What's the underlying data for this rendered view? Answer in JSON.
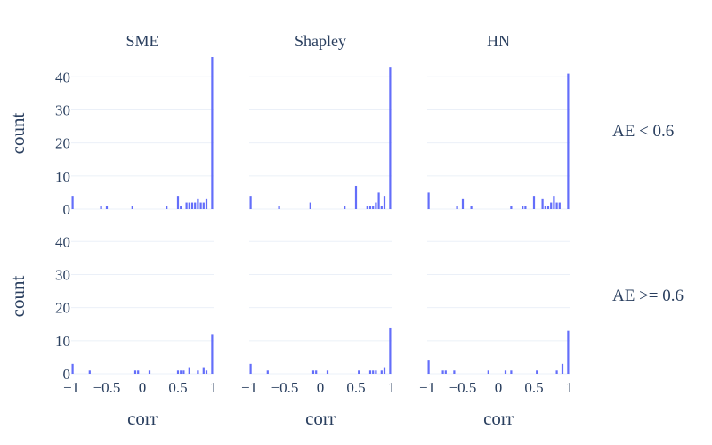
{
  "chart_data": {
    "type": "bar",
    "subtype": "histogram-facet-grid",
    "bar_color": "#636efa",
    "grid": true,
    "xlabel": "corr",
    "ylabel": "count",
    "xlim": [
      -1,
      1
    ],
    "ylim": [
      0,
      46
    ],
    "x_ticks": [
      "−1",
      "−0.5",
      "0",
      "0.5",
      "1"
    ],
    "y_ticks": [
      "0",
      "10",
      "20",
      "30",
      "40"
    ],
    "column_titles": [
      "SME",
      "Shapley",
      "HN"
    ],
    "row_titles": [
      "AE < 0.6",
      "AE >= 0.6"
    ],
    "bin_width": 0.04,
    "panels": [
      {
        "row": 0,
        "col": 0,
        "bins": [
          {
            "x": -0.98,
            "count": 4
          },
          {
            "x": -0.58,
            "count": 1
          },
          {
            "x": -0.5,
            "count": 1
          },
          {
            "x": -0.14,
            "count": 1
          },
          {
            "x": 0.34,
            "count": 1
          },
          {
            "x": 0.5,
            "count": 4
          },
          {
            "x": 0.54,
            "count": 1
          },
          {
            "x": 0.62,
            "count": 2
          },
          {
            "x": 0.66,
            "count": 2
          },
          {
            "x": 0.7,
            "count": 2
          },
          {
            "x": 0.74,
            "count": 2
          },
          {
            "x": 0.78,
            "count": 3
          },
          {
            "x": 0.82,
            "count": 2
          },
          {
            "x": 0.86,
            "count": 2
          },
          {
            "x": 0.9,
            "count": 3
          },
          {
            "x": 0.98,
            "count": 46
          }
        ]
      },
      {
        "row": 0,
        "col": 1,
        "bins": [
          {
            "x": -0.98,
            "count": 4
          },
          {
            "x": -0.58,
            "count": 1
          },
          {
            "x": -0.14,
            "count": 2
          },
          {
            "x": 0.34,
            "count": 1
          },
          {
            "x": 0.5,
            "count": 7
          },
          {
            "x": 0.66,
            "count": 1
          },
          {
            "x": 0.7,
            "count": 1
          },
          {
            "x": 0.74,
            "count": 1
          },
          {
            "x": 0.78,
            "count": 2
          },
          {
            "x": 0.82,
            "count": 5
          },
          {
            "x": 0.86,
            "count": 1
          },
          {
            "x": 0.9,
            "count": 4
          },
          {
            "x": 0.98,
            "count": 43
          }
        ]
      },
      {
        "row": 0,
        "col": 2,
        "bins": [
          {
            "x": -0.98,
            "count": 5
          },
          {
            "x": -0.58,
            "count": 1
          },
          {
            "x": -0.5,
            "count": 3
          },
          {
            "x": -0.38,
            "count": 1
          },
          {
            "x": 0.18,
            "count": 1
          },
          {
            "x": 0.34,
            "count": 1
          },
          {
            "x": 0.38,
            "count": 1
          },
          {
            "x": 0.5,
            "count": 4
          },
          {
            "x": 0.62,
            "count": 3
          },
          {
            "x": 0.66,
            "count": 1
          },
          {
            "x": 0.7,
            "count": 1
          },
          {
            "x": 0.74,
            "count": 2
          },
          {
            "x": 0.78,
            "count": 4
          },
          {
            "x": 0.82,
            "count": 2
          },
          {
            "x": 0.86,
            "count": 2
          },
          {
            "x": 0.98,
            "count": 41
          }
        ]
      },
      {
        "row": 1,
        "col": 0,
        "bins": [
          {
            "x": -0.98,
            "count": 3
          },
          {
            "x": -0.74,
            "count": 1
          },
          {
            "x": -0.1,
            "count": 1
          },
          {
            "x": -0.06,
            "count": 1
          },
          {
            "x": 0.1,
            "count": 1
          },
          {
            "x": 0.5,
            "count": 1
          },
          {
            "x": 0.54,
            "count": 1
          },
          {
            "x": 0.58,
            "count": 1
          },
          {
            "x": 0.66,
            "count": 2
          },
          {
            "x": 0.78,
            "count": 1
          },
          {
            "x": 0.86,
            "count": 2
          },
          {
            "x": 0.9,
            "count": 1
          },
          {
            "x": 0.98,
            "count": 12
          }
        ]
      },
      {
        "row": 1,
        "col": 1,
        "bins": [
          {
            "x": -0.98,
            "count": 3
          },
          {
            "x": -0.74,
            "count": 1
          },
          {
            "x": -0.1,
            "count": 1
          },
          {
            "x": -0.06,
            "count": 1
          },
          {
            "x": 0.1,
            "count": 1
          },
          {
            "x": 0.54,
            "count": 1
          },
          {
            "x": 0.7,
            "count": 1
          },
          {
            "x": 0.74,
            "count": 1
          },
          {
            "x": 0.78,
            "count": 1
          },
          {
            "x": 0.86,
            "count": 1
          },
          {
            "x": 0.9,
            "count": 2
          },
          {
            "x": 0.98,
            "count": 14
          }
        ]
      },
      {
        "row": 1,
        "col": 2,
        "bins": [
          {
            "x": -0.98,
            "count": 4
          },
          {
            "x": -0.78,
            "count": 1
          },
          {
            "x": -0.74,
            "count": 1
          },
          {
            "x": -0.62,
            "count": 1
          },
          {
            "x": -0.14,
            "count": 1
          },
          {
            "x": 0.1,
            "count": 1
          },
          {
            "x": 0.18,
            "count": 1
          },
          {
            "x": 0.54,
            "count": 1
          },
          {
            "x": 0.82,
            "count": 1
          },
          {
            "x": 0.9,
            "count": 3
          },
          {
            "x": 0.98,
            "count": 13
          }
        ]
      }
    ]
  }
}
